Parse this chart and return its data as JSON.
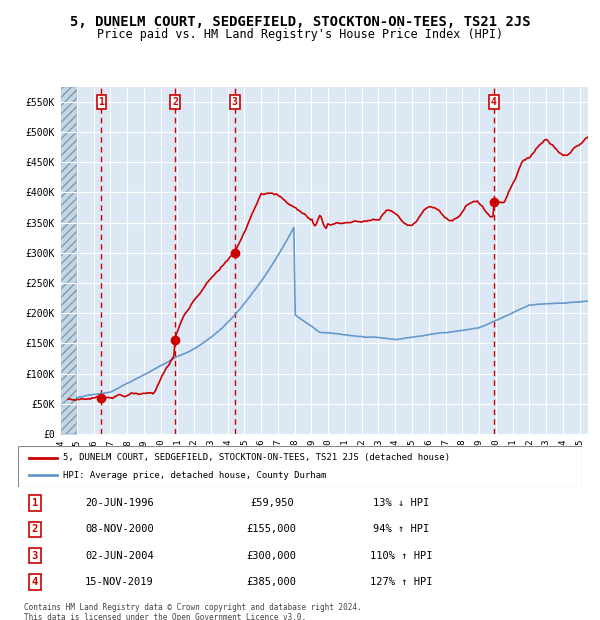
{
  "title": "5, DUNELM COURT, SEDGEFIELD, STOCKTON-ON-TEES, TS21 2JS",
  "subtitle": "Price paid vs. HM Land Registry's House Price Index (HPI)",
  "legend_line1": "5, DUNELM COURT, SEDGEFIELD, STOCKTON-ON-TEES, TS21 2JS (detached house)",
  "legend_line2": "HPI: Average price, detached house, County Durham",
  "footer1": "Contains HM Land Registry data © Crown copyright and database right 2024.",
  "footer2": "This data is licensed under the Open Government Licence v3.0.",
  "purchases": [
    {
      "num": 1,
      "date": "20-JUN-1996",
      "price": 59950,
      "pct": "13%",
      "dir": "↓",
      "year_x": 1996.47
    },
    {
      "num": 2,
      "date": "08-NOV-2000",
      "price": 155000,
      "pct": "94%",
      "dir": "↑",
      "year_x": 2000.86
    },
    {
      "num": 3,
      "date": "02-JUN-2004",
      "price": 300000,
      "pct": "110%",
      "dir": "↑",
      "year_x": 2004.42
    },
    {
      "num": 4,
      "date": "15-NOV-2019",
      "price": 385000,
      "pct": "127%",
      "dir": "↑",
      "year_x": 2019.87
    }
  ],
  "hpi_color": "#6699cc",
  "price_color": "#cc0000",
  "background_color": "#dce9f5",
  "hatch_color": "#b0c4d8",
  "grid_color": "#ffffff",
  "ylim": [
    0,
    575000
  ],
  "xlim_start": 1994.0,
  "xlim_end": 2025.5,
  "yticks": [
    0,
    50000,
    100000,
    150000,
    200000,
    250000,
    300000,
    350000,
    400000,
    450000,
    500000,
    550000
  ],
  "ytick_labels": [
    "£0",
    "£50K",
    "£100K",
    "£150K",
    "£200K",
    "£250K",
    "£300K",
    "£350K",
    "£400K",
    "£450K",
    "£500K",
    "£550K"
  ]
}
